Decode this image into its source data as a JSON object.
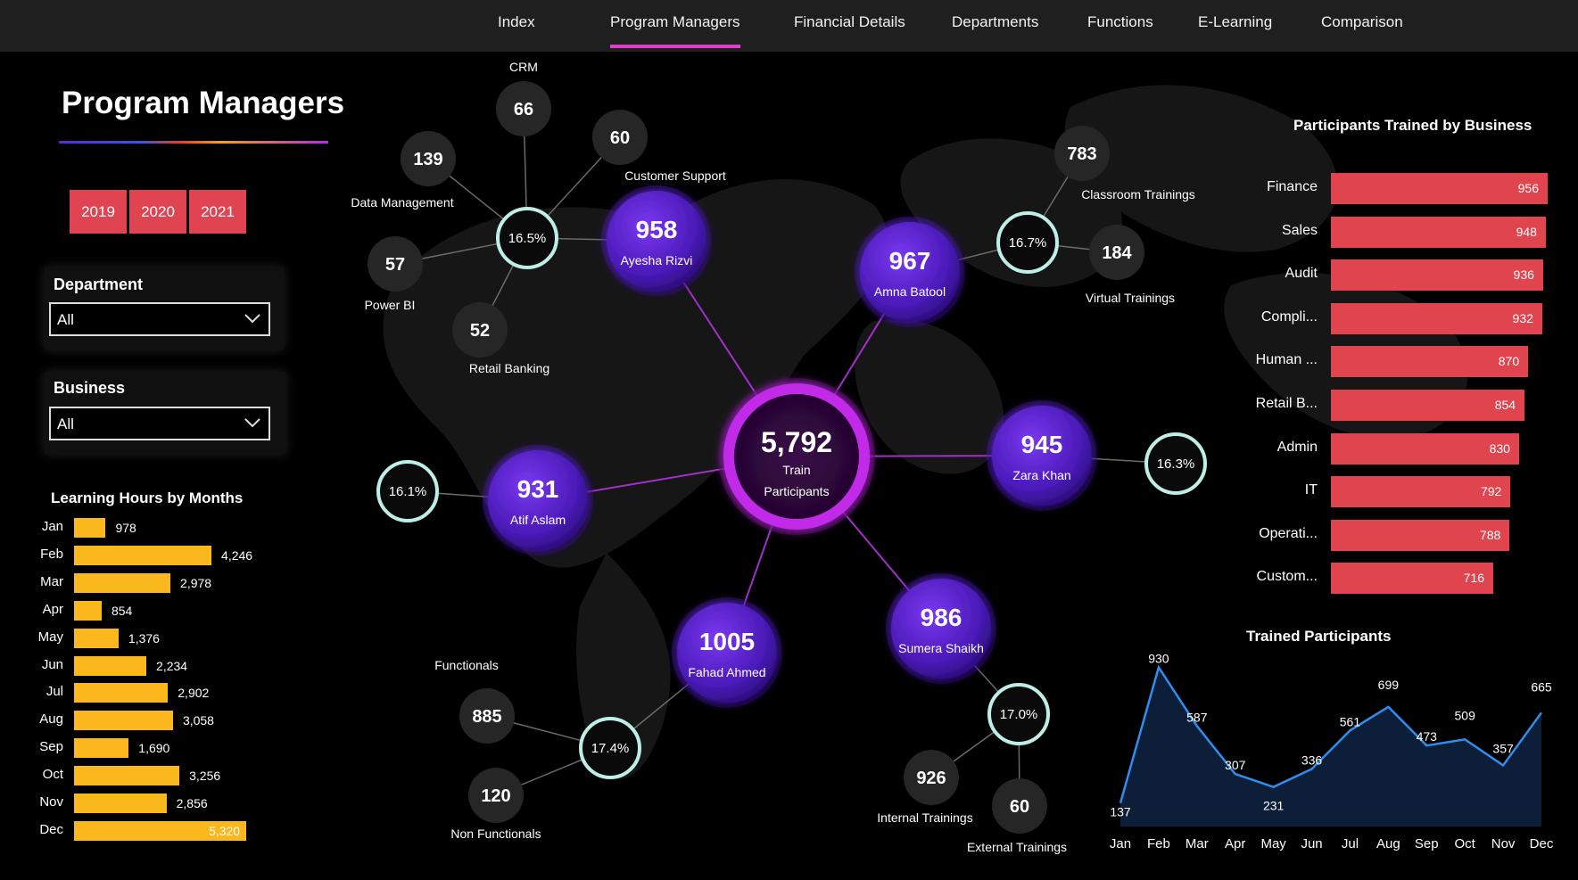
{
  "nav": {
    "tabs": [
      "Index",
      "Program Managers",
      "Financial Details",
      "Departments",
      "Functions",
      "E-Learning",
      "Comparison"
    ],
    "active": "Program Managers"
  },
  "page_title": "Program Managers",
  "years": [
    "2019",
    "2020",
    "2021"
  ],
  "filters": {
    "department": {
      "label": "Department",
      "value": "All"
    },
    "business": {
      "label": "Business",
      "value": "All"
    }
  },
  "learning_hours": {
    "title": "Learning Hours by Months",
    "months": [
      "Jan",
      "Feb",
      "Mar",
      "Apr",
      "May",
      "Jun",
      "Jul",
      "Aug",
      "Sep",
      "Oct",
      "Nov",
      "Dec"
    ],
    "values": [
      978,
      4246,
      2978,
      854,
      1376,
      2234,
      2902,
      3058,
      1690,
      3256,
      2856,
      5320
    ],
    "labels": [
      "978",
      "4,246",
      "2,978",
      "854",
      "1,376",
      "2,234",
      "2,902",
      "3,058",
      "1,690",
      "3,256",
      "2,856",
      "5,320"
    ],
    "color": "#fbb81c"
  },
  "network": {
    "center": {
      "value": "5,792",
      "line1": "Train",
      "line2": "Participants"
    },
    "managers": [
      {
        "name": "Ayesha Rizvi",
        "value": "958",
        "pct": "16.5%",
        "leaves": [
          {
            "name": "CRM",
            "value": "66"
          },
          {
            "name": "Customer Support",
            "value": "60"
          },
          {
            "name": "Data Management",
            "value": "139"
          },
          {
            "name": "Power BI",
            "value": "57"
          },
          {
            "name": "Retail Banking",
            "value": "52"
          }
        ]
      },
      {
        "name": "Amna Batool",
        "value": "967",
        "pct": "16.7%",
        "leaves": [
          {
            "name": "Classroom Trainings",
            "value": "783"
          },
          {
            "name": "Virtual Trainings",
            "value": "184"
          }
        ]
      },
      {
        "name": "Zara Khan",
        "value": "945",
        "pct": "16.3%",
        "leaves": []
      },
      {
        "name": "Sumera Shaikh",
        "value": "986",
        "pct": "17.0%",
        "leaves": [
          {
            "name": "Internal Trainings",
            "value": "926"
          },
          {
            "name": "External Trainings",
            "value": "60"
          }
        ]
      },
      {
        "name": "Fahad Ahmed",
        "value": "1005",
        "pct": "17.4%",
        "leaves": [
          {
            "name": "Functionals",
            "value": "885"
          },
          {
            "name": "Non Functionals",
            "value": "120"
          }
        ]
      },
      {
        "name": "Atif Aslam",
        "value": "931",
        "pct": "16.1%",
        "leaves": []
      }
    ]
  },
  "business": {
    "title": "Participants Trained by Business",
    "labels": [
      "Finance",
      "Sales",
      "Audit",
      "Compli...",
      "Human ...",
      "Retail B...",
      "Admin",
      "IT",
      "Operati...",
      "Custom..."
    ],
    "values": [
      956,
      948,
      936,
      932,
      870,
      854,
      830,
      792,
      788,
      716
    ],
    "color": "#e0454f"
  },
  "chart_data": {
    "type": "area",
    "title": "Trained Participants",
    "categories": [
      "Jan",
      "Feb",
      "Mar",
      "Apr",
      "May",
      "Jun",
      "Jul",
      "Aug",
      "Sep",
      "Oct",
      "Nov",
      "Dec"
    ],
    "values": [
      137,
      930,
      587,
      307,
      231,
      336,
      561,
      699,
      473,
      509,
      357,
      665
    ],
    "line_color": "#2f8ef0",
    "fill_color": "#0d1e38"
  }
}
